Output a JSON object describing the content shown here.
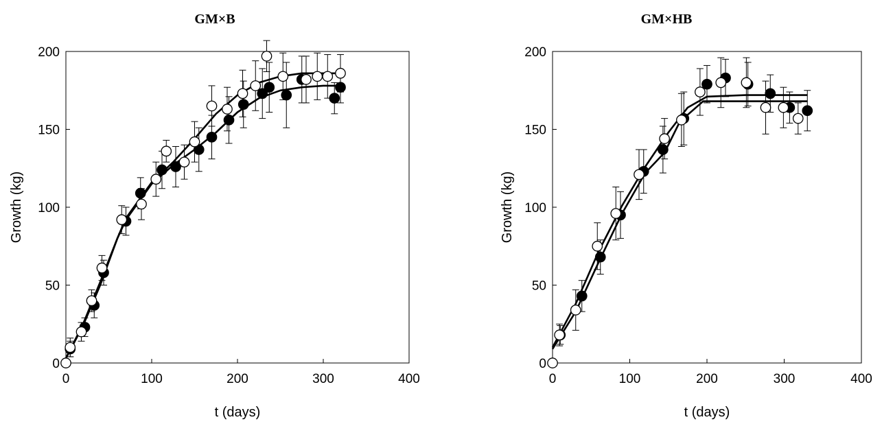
{
  "chart_data": [
    {
      "type": "scatter",
      "title": "GM×B",
      "xlabel": "t (days)",
      "ylabel": "Growth (kg)",
      "xlim": [
        0,
        400
      ],
      "ylim": [
        0,
        200
      ],
      "xticks": [
        "0",
        "100",
        "200",
        "300",
        "400"
      ],
      "yticks": [
        "0",
        "50",
        "100",
        "150",
        "200"
      ],
      "grid": false,
      "series": [
        {
          "marker": "filled-circle",
          "color": "#000000",
          "points": [
            {
              "x": 5,
              "y": 9,
              "err": 5
            },
            {
              "x": 22,
              "y": 23,
              "err": 6
            },
            {
              "x": 33,
              "y": 37,
              "err": 8
            },
            {
              "x": 44,
              "y": 58,
              "err": 8
            },
            {
              "x": 70,
              "y": 91,
              "err": 9
            },
            {
              "x": 87,
              "y": 109,
              "err": 10
            },
            {
              "x": 112,
              "y": 124,
              "err": 12
            },
            {
              "x": 128,
              "y": 126,
              "err": 13
            },
            {
              "x": 155,
              "y": 137,
              "err": 14
            },
            {
              "x": 170,
              "y": 145,
              "err": 14
            },
            {
              "x": 190,
              "y": 156,
              "err": 15
            },
            {
              "x": 207,
              "y": 166,
              "err": 15
            },
            {
              "x": 229,
              "y": 173,
              "err": 16
            },
            {
              "x": 237,
              "y": 177,
              "err": 16
            },
            {
              "x": 257,
              "y": 172,
              "err": 21
            },
            {
              "x": 275,
              "y": 182,
              "err": 15
            },
            {
              "x": 313,
              "y": 170,
              "err": 10
            },
            {
              "x": 320,
              "y": 177,
              "err": 10
            }
          ],
          "fit": [
            [
              0,
              3
            ],
            [
              20,
              24
            ],
            [
              40,
              50
            ],
            [
              60,
              80
            ],
            [
              70,
              92
            ],
            [
              100,
              115
            ],
            [
              125,
              127
            ],
            [
              150,
              137
            ],
            [
              175,
              148
            ],
            [
              200,
              161
            ],
            [
              225,
              170
            ],
            [
              250,
              175
            ],
            [
              275,
              177
            ],
            [
              300,
              178
            ],
            [
              320,
              178
            ]
          ]
        },
        {
          "marker": "open-circle",
          "color": "#000000",
          "points": [
            {
              "x": 0,
              "y": 0,
              "err": 0
            },
            {
              "x": 5,
              "y": 10,
              "err": 6
            },
            {
              "x": 18,
              "y": 20,
              "err": 6
            },
            {
              "x": 30,
              "y": 40,
              "err": 7
            },
            {
              "x": 42,
              "y": 61,
              "err": 8
            },
            {
              "x": 65,
              "y": 92,
              "err": 9
            },
            {
              "x": 88,
              "y": 102,
              "err": 10
            },
            {
              "x": 105,
              "y": 118,
              "err": 11
            },
            {
              "x": 117,
              "y": 136,
              "err": 7
            },
            {
              "x": 138,
              "y": 129,
              "err": 11
            },
            {
              "x": 150,
              "y": 142,
              "err": 13
            },
            {
              "x": 170,
              "y": 165,
              "err": 13
            },
            {
              "x": 188,
              "y": 163,
              "err": 14
            },
            {
              "x": 206,
              "y": 173,
              "err": 15
            },
            {
              "x": 221,
              "y": 178,
              "err": 16
            },
            {
              "x": 234,
              "y": 197,
              "err": 10
            },
            {
              "x": 253,
              "y": 184,
              "err": 15
            },
            {
              "x": 280,
              "y": 182,
              "err": 15
            },
            {
              "x": 293,
              "y": 184,
              "err": 15
            },
            {
              "x": 305,
              "y": 184,
              "err": 14
            },
            {
              "x": 320,
              "y": 186,
              "err": 12
            }
          ],
          "fit": [
            [
              0,
              3
            ],
            [
              20,
              25
            ],
            [
              40,
              52
            ],
            [
              60,
              80
            ],
            [
              70,
              93
            ],
            [
              100,
              116
            ],
            [
              125,
              129
            ],
            [
              150,
              144
            ],
            [
              175,
              160
            ],
            [
              200,
              172
            ],
            [
              225,
              180
            ],
            [
              250,
              184
            ],
            [
              275,
              186
            ],
            [
              300,
              186
            ],
            [
              320,
              186
            ]
          ]
        }
      ]
    },
    {
      "type": "scatter",
      "title": "GM×HB",
      "xlabel": "t (days)",
      "ylabel": "Growth (kg)",
      "xlim": [
        0,
        400
      ],
      "ylim": [
        0,
        200
      ],
      "xticks": [
        "0",
        "100",
        "200",
        "300",
        "400"
      ],
      "yticks": [
        "0",
        "50",
        "100",
        "150",
        "200"
      ],
      "grid": false,
      "series": [
        {
          "marker": "filled-circle",
          "color": "#000000",
          "points": [
            {
              "x": 10,
              "y": 18,
              "err": 6
            },
            {
              "x": 38,
              "y": 43,
              "err": 10
            },
            {
              "x": 62,
              "y": 68,
              "err": 11
            },
            {
              "x": 88,
              "y": 95,
              "err": 15
            },
            {
              "x": 118,
              "y": 123,
              "err": 14
            },
            {
              "x": 143,
              "y": 137,
              "err": 15
            },
            {
              "x": 170,
              "y": 157,
              "err": 17
            },
            {
              "x": 200,
              "y": 179,
              "err": 12
            },
            {
              "x": 224,
              "y": 183,
              "err": 12
            },
            {
              "x": 253,
              "y": 179,
              "err": 14
            },
            {
              "x": 282,
              "y": 173,
              "err": 12
            },
            {
              "x": 307,
              "y": 164,
              "err": 10
            },
            {
              "x": 330,
              "y": 162,
              "err": 13
            }
          ],
          "fit": [
            [
              0,
              9
            ],
            [
              30,
              33
            ],
            [
              60,
              65
            ],
            [
              90,
              96
            ],
            [
              120,
              122
            ],
            [
              145,
              135
            ],
            [
              165,
              155
            ],
            [
              195,
              168
            ],
            [
              250,
              168
            ],
            [
              330,
              168
            ]
          ]
        },
        {
          "marker": "open-circle",
          "color": "#000000",
          "points": [
            {
              "x": 0,
              "y": 0,
              "err": 0
            },
            {
              "x": 9,
              "y": 18,
              "err": 7
            },
            {
              "x": 30,
              "y": 34,
              "err": 13
            },
            {
              "x": 58,
              "y": 75,
              "err": 15
            },
            {
              "x": 82,
              "y": 96,
              "err": 17
            },
            {
              "x": 112,
              "y": 121,
              "err": 16
            },
            {
              "x": 145,
              "y": 144,
              "err": 13
            },
            {
              "x": 167,
              "y": 156,
              "err": 17
            },
            {
              "x": 191,
              "y": 174,
              "err": 15
            },
            {
              "x": 218,
              "y": 180,
              "err": 16
            },
            {
              "x": 251,
              "y": 180,
              "err": 16
            },
            {
              "x": 276,
              "y": 164,
              "err": 17
            },
            {
              "x": 299,
              "y": 164,
              "err": 13
            },
            {
              "x": 318,
              "y": 157,
              "err": 10
            }
          ],
          "fit": [
            [
              0,
              10
            ],
            [
              30,
              38
            ],
            [
              60,
              72
            ],
            [
              90,
              101
            ],
            [
              120,
              126
            ],
            [
              150,
              148
            ],
            [
              175,
              164
            ],
            [
              200,
              171
            ],
            [
              250,
              172
            ],
            [
              330,
              172
            ]
          ]
        }
      ]
    }
  ]
}
